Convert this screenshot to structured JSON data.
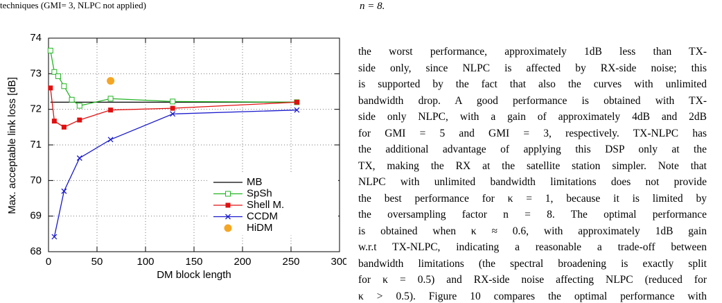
{
  "caption_fragment": "techniques (GMI= 3, NLPC not applied)",
  "top_right_fragment": "n = 8.",
  "chart_data": {
    "type": "line",
    "xlabel": "DM block length",
    "ylabel": "Max. acceptable link loss [dB]",
    "xlim": [
      0,
      300
    ],
    "ylim": [
      68,
      74
    ],
    "xticks": [
      0,
      50,
      100,
      150,
      200,
      250,
      300
    ],
    "yticks": [
      68,
      69,
      70,
      71,
      72,
      73,
      74
    ],
    "grid": true,
    "legend": "lower right",
    "series": [
      {
        "name": "MB",
        "color": "#000000",
        "marker": "none",
        "x": [
          2,
          256
        ],
        "values": [
          72.2,
          72.2
        ]
      },
      {
        "name": "SpSh",
        "color": "#22b522",
        "marker": "open-square",
        "x": [
          2,
          6,
          10,
          16,
          24,
          32,
          64,
          128,
          256
        ],
        "values": [
          73.65,
          73.05,
          72.93,
          72.65,
          72.27,
          72.1,
          72.3,
          72.22,
          72.2
        ]
      },
      {
        "name": "Shell M.",
        "color": "#e01010",
        "marker": "filled-square",
        "x": [
          2,
          6,
          16,
          32,
          64,
          128,
          256
        ],
        "values": [
          72.6,
          71.67,
          71.5,
          71.7,
          71.98,
          72.03,
          72.2
        ]
      },
      {
        "name": "CCDM",
        "color": "#1a1acc",
        "marker": "cross",
        "x": [
          6,
          16,
          32,
          64,
          128,
          256
        ],
        "values": [
          68.42,
          69.7,
          70.63,
          71.15,
          71.87,
          71.98
        ]
      },
      {
        "name": "HiDM",
        "color": "#f5a623",
        "marker": "circle",
        "line": false,
        "x": [
          64
        ],
        "values": [
          72.8
        ]
      }
    ]
  },
  "body_lines": [
    "the worst performance, approximately 1dB less than TX-",
    "side only, since NLPC is affected by RX-side noise; this",
    "is supported by the fact that also the curves with unlimited",
    "bandwidth drop. A good performance is obtained with TX-",
    "side only NLPC, with a gain of approximately 4dB and 2dB",
    "for GMI = 5 and GMI = 3, respectively. TX-NLPC has",
    "the additional advantage of applying this DSP only at the",
    "TX, making the RX at the satellite station simpler. Note that",
    "NLPC with unlimited bandwidth limitations does not provide",
    "the best performance for κ = 1, because it is limited by",
    "the oversampling factor n = 8. The optimal performance",
    "is obtained when κ ≈ 0.6, with approximately 1dB gain",
    "w.r.t TX-NLPC, indicating a reasonable a trade-off between",
    "bandwidth limitations (the spectral broadening is exactly split",
    "for κ = 0.5) and RX-side noise affecting NLPC (reduced for",
    "κ > 0.5). Figure 10 compares the optimal performance with"
  ]
}
